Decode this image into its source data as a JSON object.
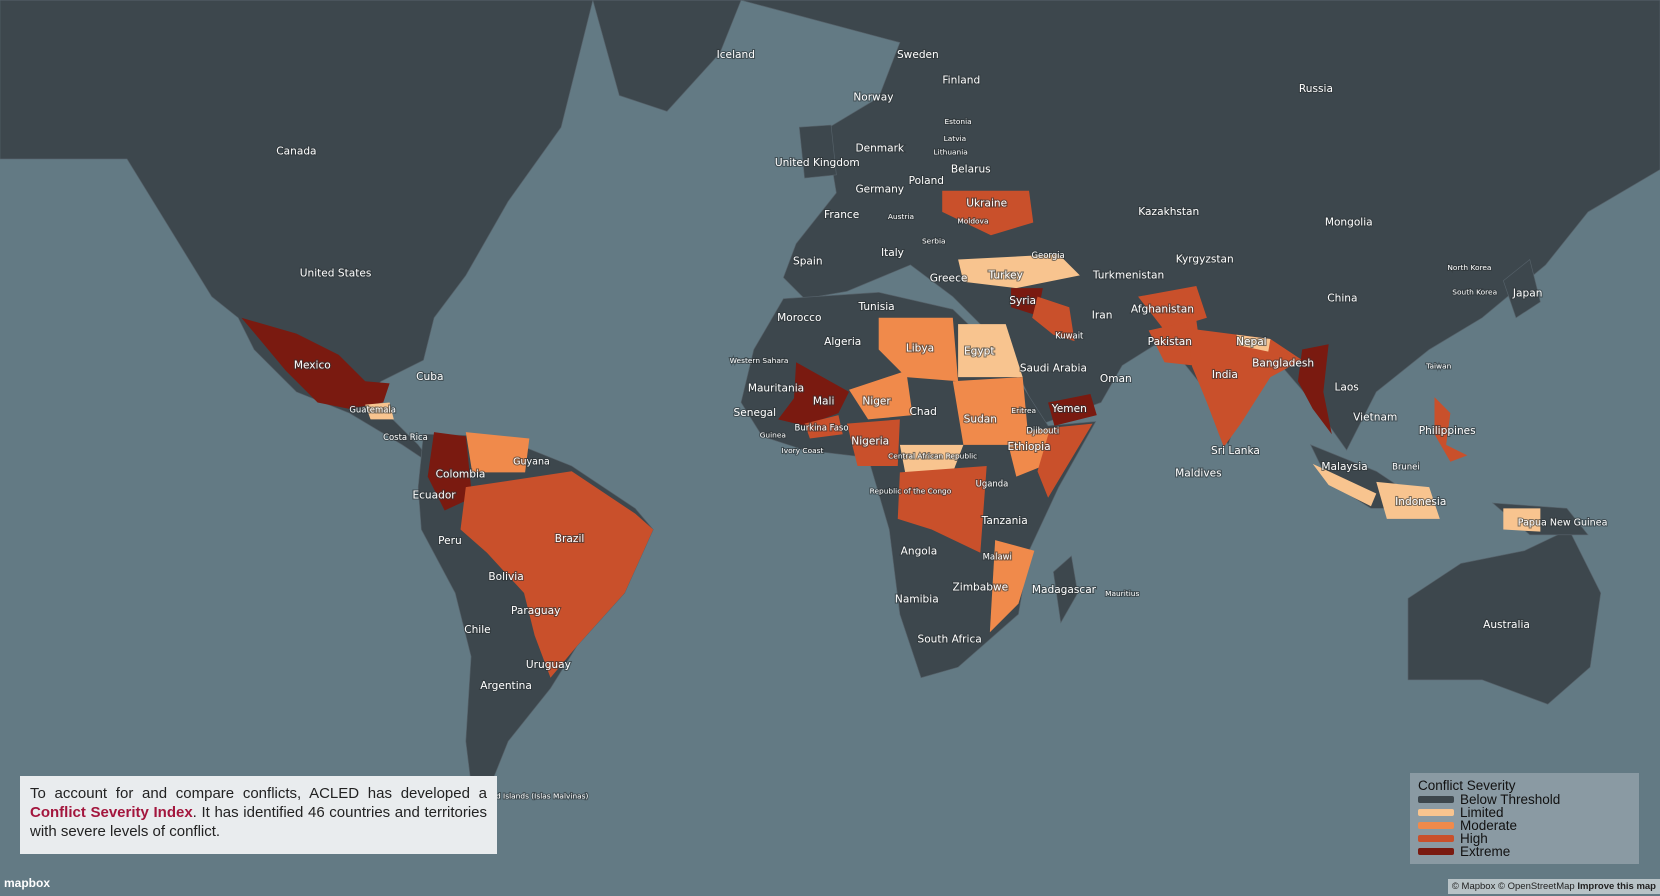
{
  "map": {
    "labels": [
      "Iceland",
      "Sweden",
      "Finland",
      "Russia",
      "Norway",
      "Canada",
      "Estonia",
      "Latvia",
      "Lithuania",
      "Denmark",
      "United Kingdom",
      "Belarus",
      "Poland",
      "Germany",
      "Ukraine",
      "Kazakhstan",
      "Mongolia",
      "France",
      "Austria",
      "Moldova",
      "Serbia",
      "Italy",
      "Georgia",
      "Kyrgyzstan",
      "Spain",
      "United States",
      "Turkey",
      "Turkmenistan",
      "North Korea",
      "Greece",
      "South Korea",
      "Japan",
      "China",
      "Syria",
      "Tunisia",
      "Afghanistan",
      "Morocco",
      "Iran",
      "Kuwait",
      "Algeria",
      "Libya",
      "Egypt",
      "Pakistan",
      "Nepal",
      "Mexico",
      "Western Sahara",
      "Bangladesh",
      "Taiwan",
      "Saudi Arabia",
      "India",
      "Cuba",
      "Oman",
      "Mauritania",
      "Laos",
      "Mali",
      "Niger",
      "Chad",
      "Yemen",
      "Guatemala",
      "Senegal",
      "Eritrea",
      "Vietnam",
      "Sudan",
      "Burkina Faso",
      "Djibouti",
      "Philippines",
      "Costa Rica",
      "Guinea",
      "Nigeria",
      "Ethiopia",
      "Ivory Coast",
      "Central African Republic",
      "Guyana",
      "Malaysia",
      "Brunei",
      "Sri Lanka",
      "Maldives",
      "Colombia",
      "Uganda",
      "Republic of the Congo",
      "Ecuador",
      "Indonesia",
      "Tanzania",
      "Papua New Guinea",
      "Brazil",
      "Peru",
      "Angola",
      "Malawi",
      "Bolivia",
      "Zimbabwe",
      "Madagascar",
      "Mauritius",
      "Namibia",
      "Paraguay",
      "Australia",
      "Chile",
      "South Africa",
      "Uruguay",
      "Argentina",
      "Falkland Islands (Islas Malvinas)"
    ]
  },
  "info": {
    "text_before": "To account for and compare conflicts, ACLED has developed a",
    "link": "Conflict Severity Index",
    "text_after": ". It has identified 46 countries and territories with severe levels of conflict."
  },
  "legend": {
    "title": "Conflict Severity",
    "items": [
      {
        "name": "Below Threshold",
        "color": "#3d474d"
      },
      {
        "name": "Limited",
        "color": "#f8c48f"
      },
      {
        "name": "Moderate",
        "color": "#f08a4b"
      },
      {
        "name": "High",
        "color": "#c9502b"
      },
      {
        "name": "Extreme",
        "color": "#7a1a10"
      }
    ]
  },
  "attribution": {
    "logo": "mapbox",
    "mapbox": "© Mapbox",
    "osm": "© OpenStreetMap",
    "improve": "Improve this map"
  }
}
